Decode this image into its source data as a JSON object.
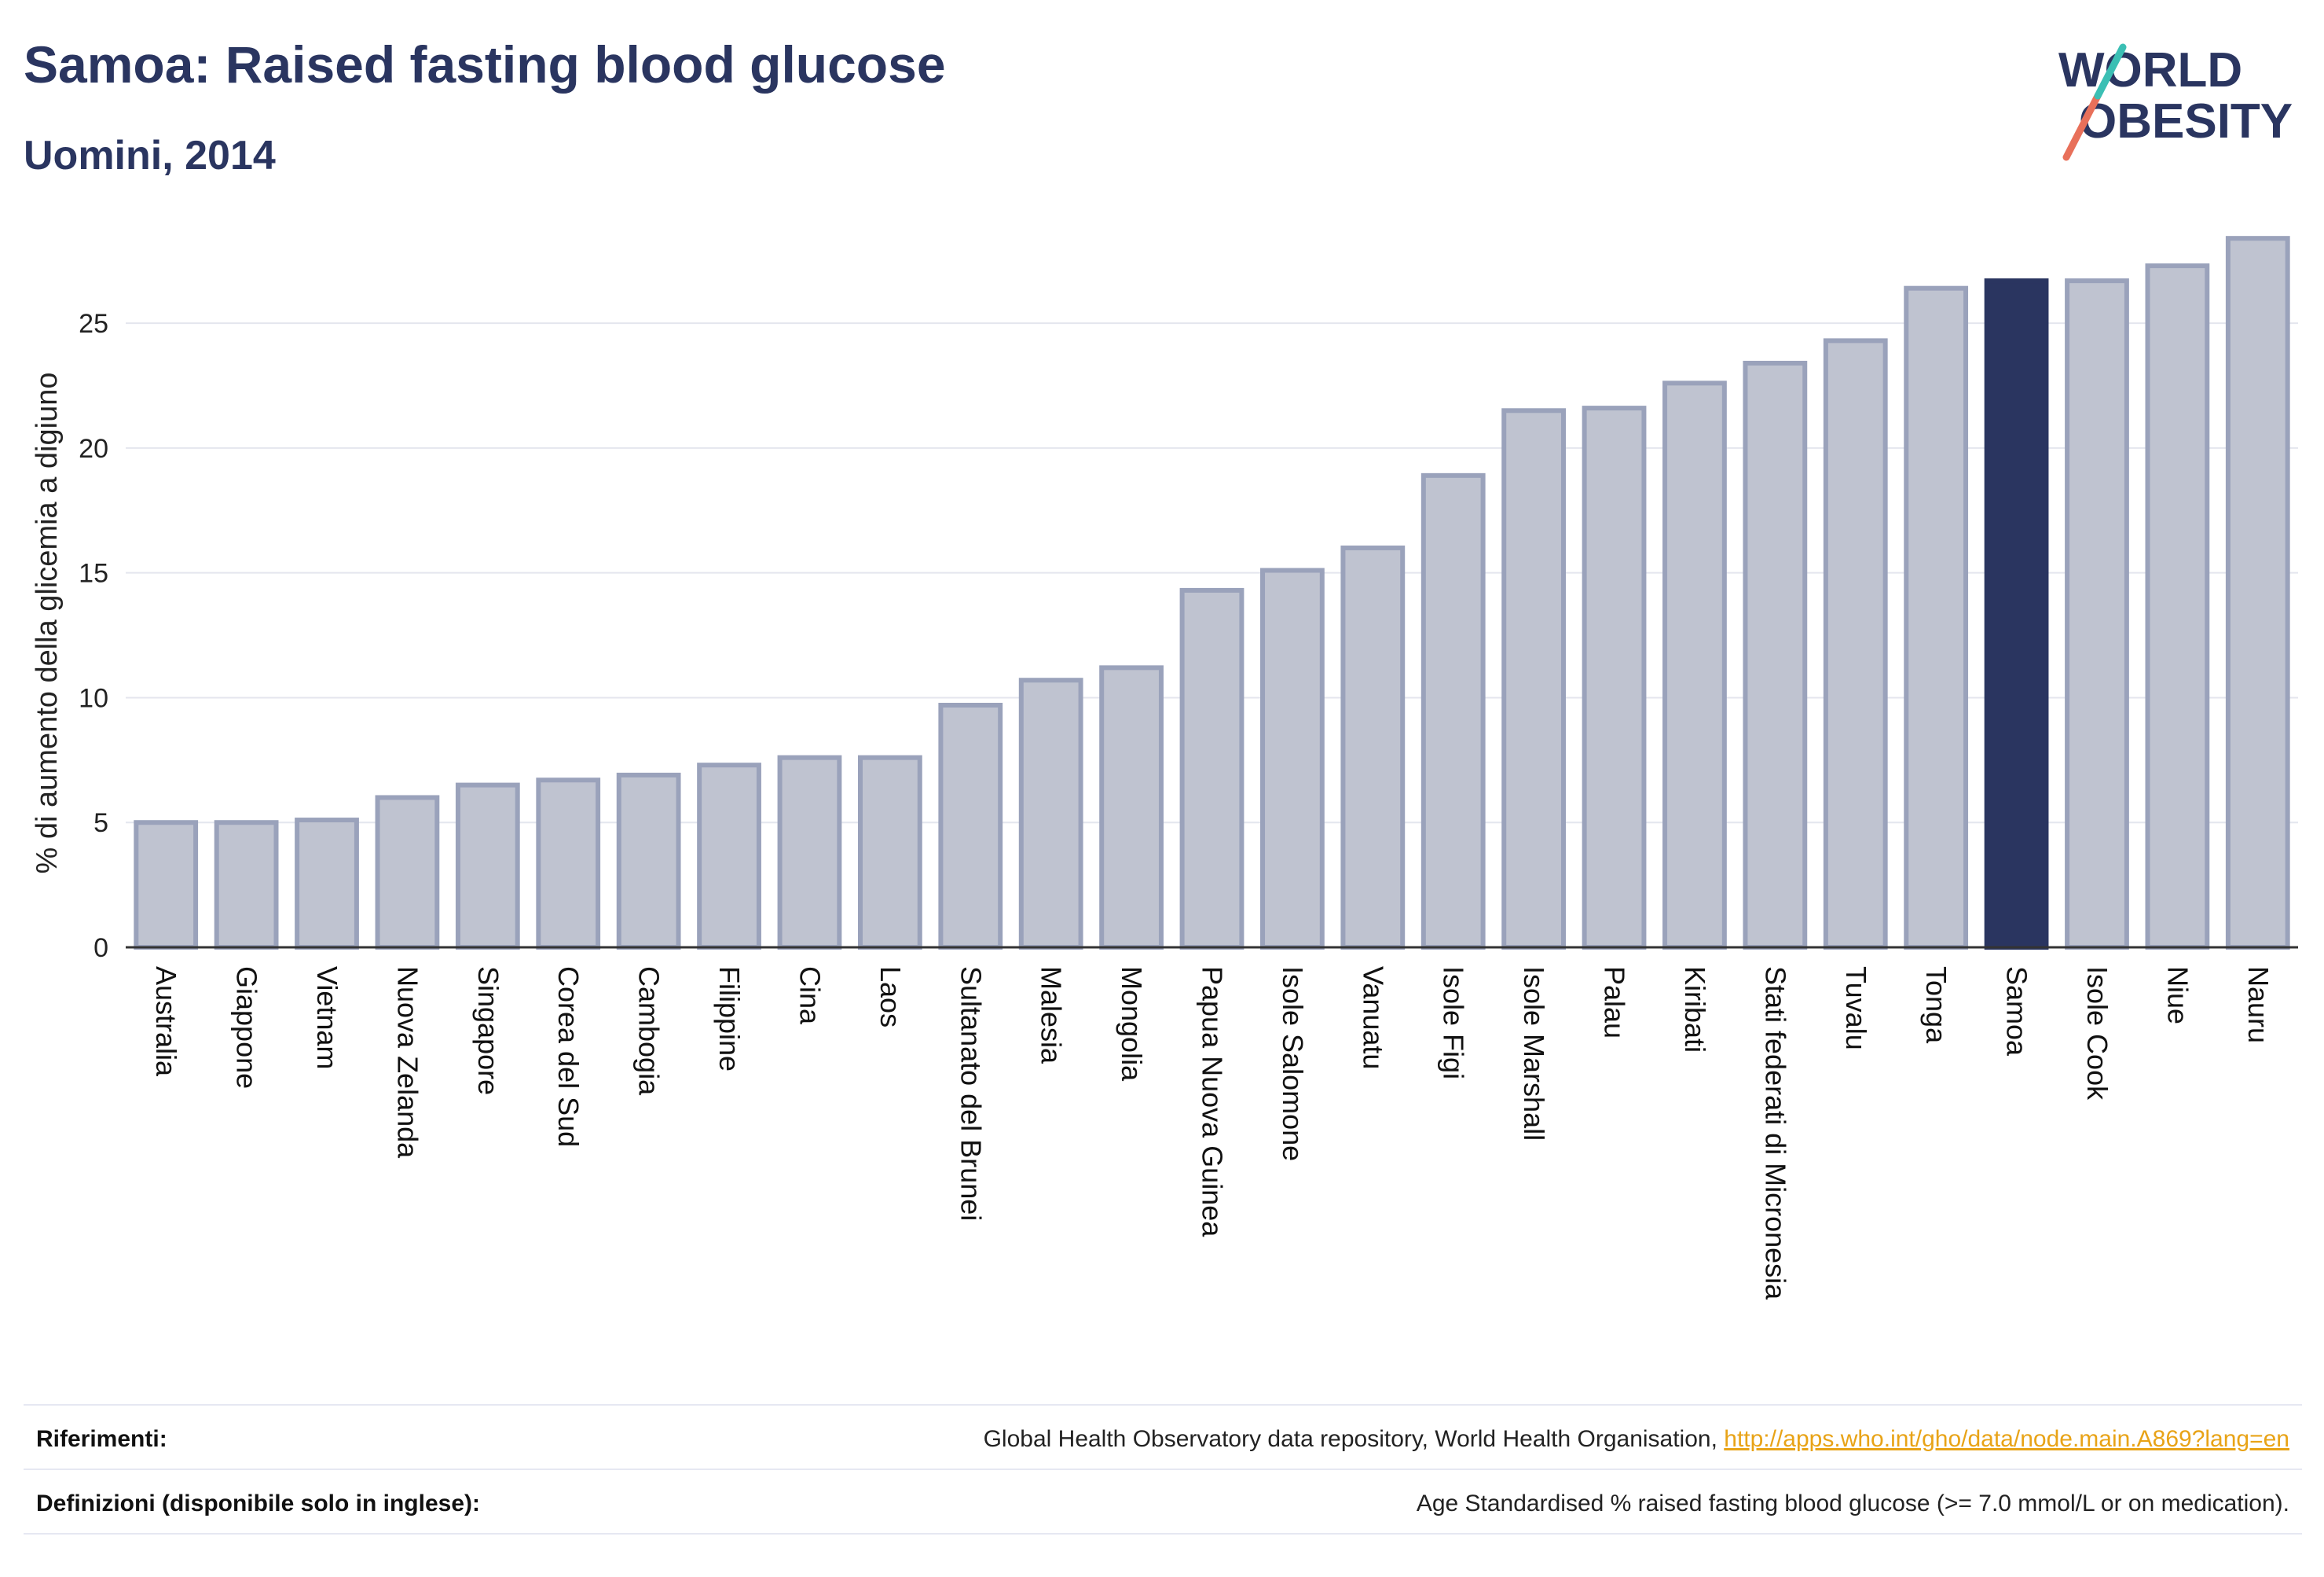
{
  "header": {
    "title": "Samoa: Raised fasting blood glucose",
    "subtitle": "Uomini, 2014"
  },
  "logo": {
    "line1": "WORLD",
    "line2": "OBESITY"
  },
  "colors": {
    "highlight": "#2a3560",
    "bar_fill": "#bfc3d0",
    "bar_stroke": "#9aa2bb",
    "link": "#e8a317"
  },
  "chart_data": {
    "type": "bar",
    "ylabel": "% di aumento della glicemia a digiuno",
    "ylim": [
      0,
      28.5
    ],
    "yticks": [
      0,
      5,
      10,
      15,
      20,
      25
    ],
    "grid": true,
    "highlight": "Samoa",
    "categories": [
      "Australia",
      "Giappone",
      "Vietnam",
      "Nuova Zelanda",
      "Singapore",
      "Corea del Sud",
      "Cambogia",
      "Filippine",
      "Cina",
      "Laos",
      "Sultanato del Brunei",
      "Malesia",
      "Mongolia",
      "Papua Nuova Guinea",
      "Isole Salomone",
      "Vanuatu",
      "Isole Figi",
      "Isole Marshall",
      "Palau",
      "Kiribati",
      "Stati federati di Micronesia",
      "Tuvalu",
      "Tonga",
      "Samoa",
      "Isole Cook",
      "Niue",
      "Nauru"
    ],
    "values": [
      5.0,
      5.0,
      5.1,
      6.0,
      6.5,
      6.7,
      6.9,
      7.3,
      7.6,
      7.6,
      9.7,
      10.7,
      11.2,
      14.3,
      15.1,
      16.0,
      18.9,
      21.5,
      21.6,
      22.6,
      23.4,
      24.3,
      26.4,
      26.7,
      26.7,
      27.3,
      28.4
    ]
  },
  "footer": {
    "references_label": "Riferimenti:",
    "references_text": "Global Health Observatory data repository, World Health Organisation, ",
    "references_link": "http://apps.who.int/gho/data/node.main.A869?lang=en",
    "definitions_label": "Definizioni (disponibile solo in inglese):",
    "definitions_text": "Age Standardised % raised fasting blood glucose (>= 7.0 mmol/L or on medication)."
  }
}
